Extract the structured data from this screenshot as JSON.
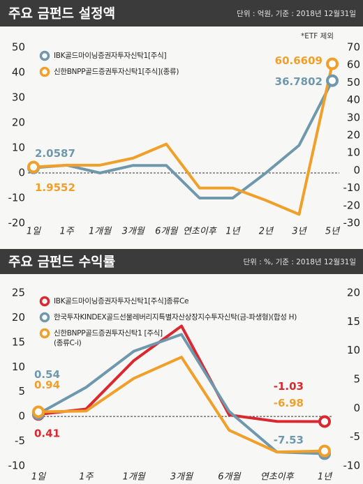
{
  "chart_data": [
    {
      "type": "line",
      "title": "주요 금펀드 설정액",
      "subtitle": "단위 : 억원, 기준 : 2018년 12월31일",
      "note": "*ETF 제외",
      "categories": [
        "1일",
        "1주",
        "1개월",
        "3개월",
        "6개월",
        "연초이후",
        "1년",
        "2년",
        "3년",
        "5년"
      ],
      "series": [
        {
          "name": "IBK골드마이닝증권자투자신탁1[주식]",
          "color": "#6f98ad",
          "values": [
            2.0587,
            3.1,
            0,
            3,
            3,
            -10,
            -10,
            0,
            11,
            36.7802
          ]
        },
        {
          "name": "신한BNPP골드증권투자신탁1[주식](종류)",
          "color": "#f0a02a",
          "axis": "y2",
          "values": [
            1.9552,
            3,
            3,
            7,
            15,
            -10,
            -10,
            -17,
            -25,
            60.6609
          ]
        }
      ],
      "ylim": [
        -20,
        50
      ],
      "yticks": [
        -20,
        -10,
        0,
        10,
        20,
        30,
        40,
        50
      ],
      "y2lim": [
        -30,
        70
      ],
      "y2ticks": [
        -30,
        -20,
        -10,
        0,
        10,
        20,
        30,
        40,
        50,
        60,
        70
      ]
    },
    {
      "type": "line",
      "title": "주요 금펀드 수익률",
      "subtitle": "단위 : %, 기준 : 2018년 12월31일",
      "categories": [
        "1일",
        "1주",
        "1개월",
        "3개월",
        "6개월",
        "연초이후",
        "1년"
      ],
      "series": [
        {
          "name": "IBK골드마이닝증권자투자신탁1[주식]종류Ce",
          "color": "#d9282f",
          "values": [
            0.41,
            1.5,
            11.3,
            18.3,
            0.3,
            -1,
            -1.03
          ]
        },
        {
          "name": "한국투자KINDEX골드선물레버리지특별자산상장지수투자신탁(금-파생형)(합성 H)",
          "color": "#6f98ad",
          "values": [
            0.54,
            5.9,
            13.2,
            16.6,
            1,
            -7.2,
            -7.53
          ]
        },
        {
          "name": "신한BNPP골드증권투자신탁1 [주식](종류C-i)",
          "color": "#f0a02a",
          "values": [
            0.94,
            1.1,
            7.7,
            12,
            -2.8,
            -7.2,
            -6.98
          ]
        }
      ],
      "ylim": [
        -10,
        25
      ],
      "yticks": [
        -10,
        -5,
        0,
        5,
        10,
        15,
        20,
        25
      ],
      "y2lim": [
        -10,
        20
      ],
      "y2ticks": [
        -10,
        -5,
        0,
        5,
        10,
        15,
        20
      ]
    }
  ]
}
